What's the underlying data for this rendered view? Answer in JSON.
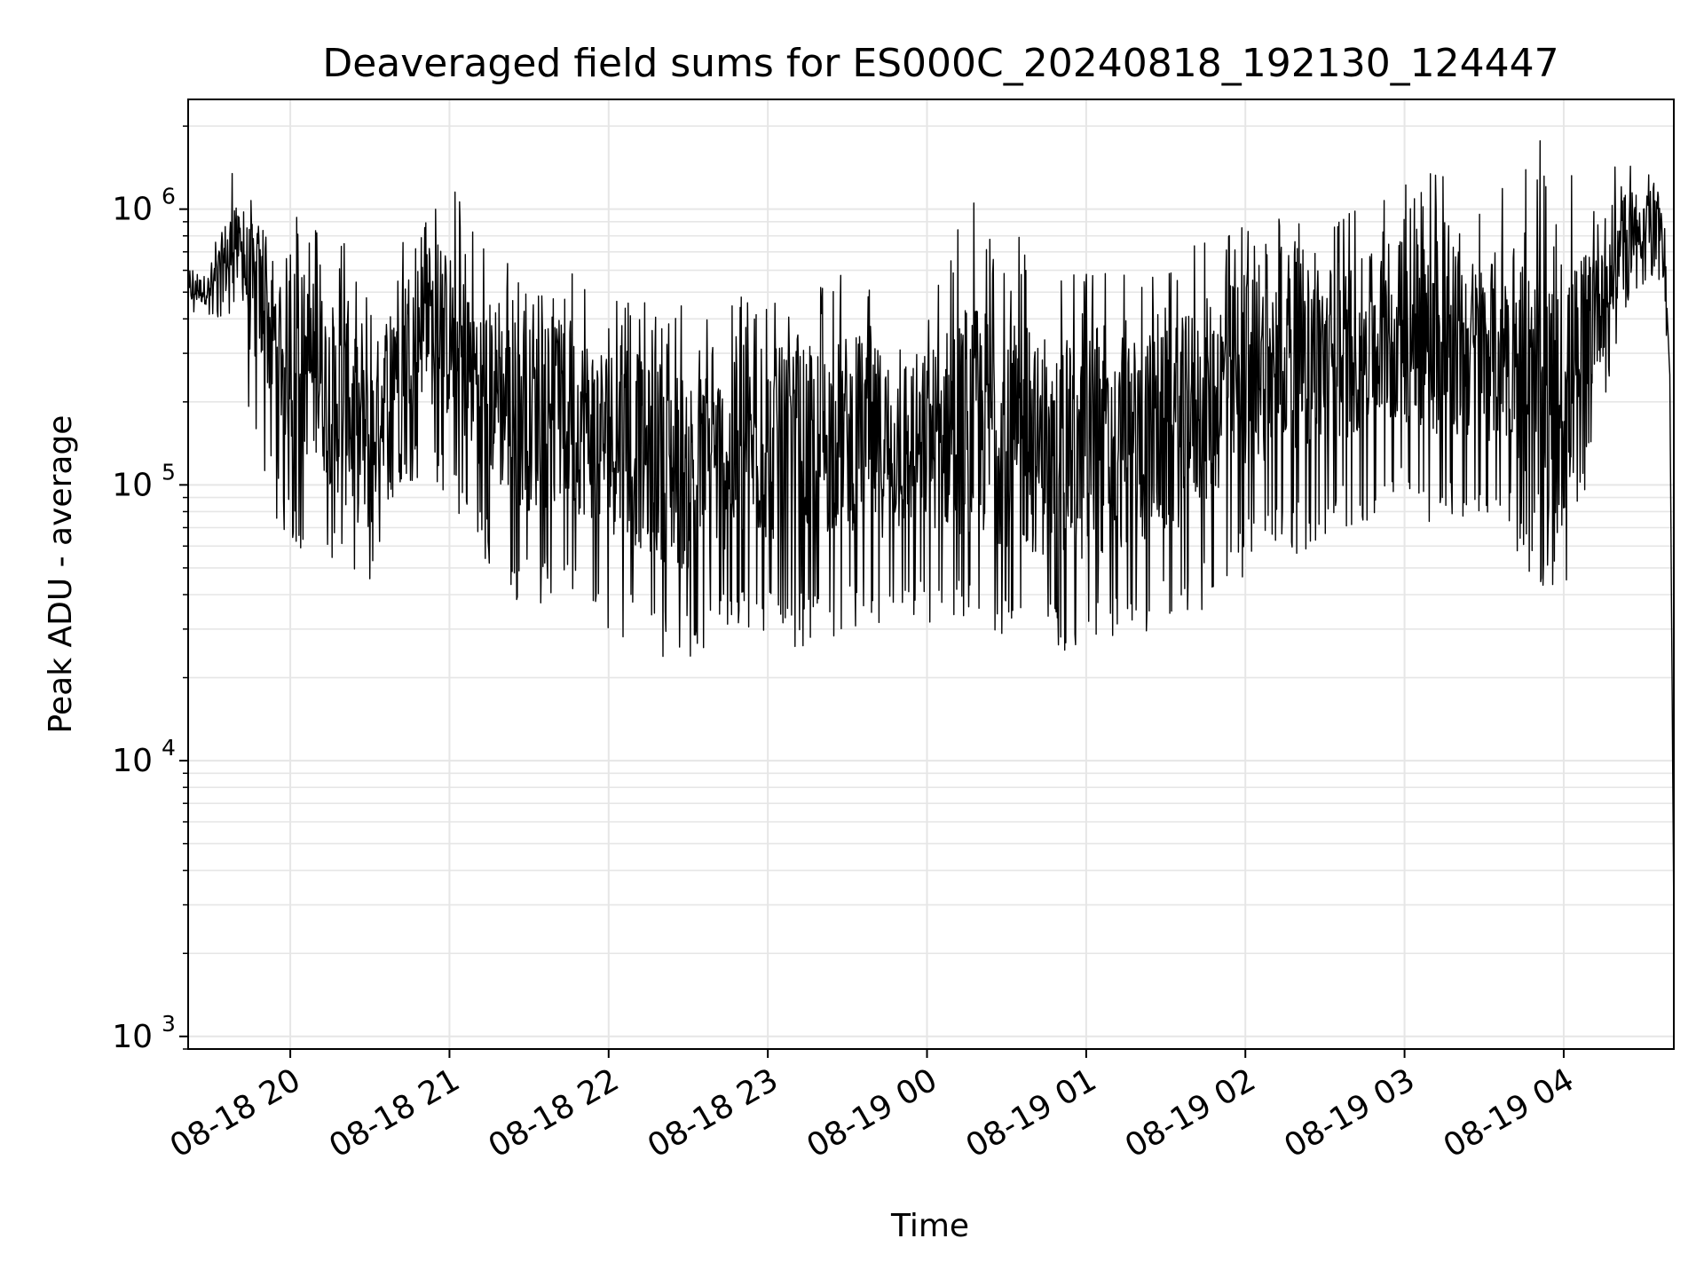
{
  "chart_data": {
    "type": "line",
    "title": "Deaveraged field sums for ES000C_20240818_192130_124447",
    "xlabel": "Time",
    "ylabel": "Peak ADU - average",
    "x_range": [
      "2024-08-18 19:21:30",
      "2024-08-19 04:41:30"
    ],
    "y_scale": "log",
    "ylim": [
      900,
      2500000
    ],
    "grid": true,
    "line_color": "#000000",
    "grid_color": "#e6e6e6",
    "xticks": [
      {
        "value": "2024-08-18 20:00",
        "label": "08-18 20"
      },
      {
        "value": "2024-08-18 21:00",
        "label": "08-18 21"
      },
      {
        "value": "2024-08-18 22:00",
        "label": "08-18 22"
      },
      {
        "value": "2024-08-18 23:00",
        "label": "08-18 23"
      },
      {
        "value": "2024-08-19 00:00",
        "label": "08-19 00"
      },
      {
        "value": "2024-08-19 01:00",
        "label": "08-19 01"
      },
      {
        "value": "2024-08-19 02:00",
        "label": "08-19 02"
      },
      {
        "value": "2024-08-19 03:00",
        "label": "08-19 03"
      },
      {
        "value": "2024-08-19 04:00",
        "label": "08-19 04"
      }
    ],
    "yticks": [
      {
        "value": 1000,
        "base": "10",
        "exp": "3"
      },
      {
        "value": 10000,
        "base": "10",
        "exp": "4"
      },
      {
        "value": 100000,
        "base": "10",
        "exp": "5"
      },
      {
        "value": 1000000,
        "base": "10",
        "exp": "6"
      }
    ],
    "series": [
      {
        "x": [
          "2024-08-18 19:21:30",
          "2024-08-18 19:30",
          "2024-08-18 19:37",
          "2024-08-18 19:40",
          "2024-08-18 19:45",
          "2024-08-18 19:50",
          "2024-08-18 19:55",
          "2024-08-18 20:00",
          "2024-08-18 20:10",
          "2024-08-18 20:20",
          "2024-08-18 20:30",
          "2024-08-18 20:35",
          "2024-08-18 20:40",
          "2024-08-18 20:50",
          "2024-08-18 21:00",
          "2024-08-18 21:10",
          "2024-08-18 21:20",
          "2024-08-18 21:30",
          "2024-08-18 21:45",
          "2024-08-18 22:00",
          "2024-08-18 22:15",
          "2024-08-18 22:30",
          "2024-08-18 22:45",
          "2024-08-18 23:00",
          "2024-08-18 23:15",
          "2024-08-18 23:30",
          "2024-08-18 23:45",
          "2024-08-19 00:00",
          "2024-08-19 00:15",
          "2024-08-19 00:30",
          "2024-08-19 00:45",
          "2024-08-19 01:00",
          "2024-08-19 01:15",
          "2024-08-19 01:30",
          "2024-08-19 01:45",
          "2024-08-19 02:00",
          "2024-08-19 02:15",
          "2024-08-19 02:30",
          "2024-08-19 02:45",
          "2024-08-19 03:00",
          "2024-08-19 03:15",
          "2024-08-19 03:30",
          "2024-08-19 03:40",
          "2024-08-19 03:50",
          "2024-08-19 04:00",
          "2024-08-19 04:10",
          "2024-08-19 04:20",
          "2024-08-19 04:25",
          "2024-08-19 04:30",
          "2024-08-19 04:35",
          "2024-08-19 04:38",
          "2024-08-19 04:40",
          "2024-08-19 04:41:30"
        ],
        "y_typical": [
          500000,
          520000,
          560000,
          900000,
          700000,
          600000,
          400000,
          350000,
          300000,
          160000,
          110000,
          200000,
          400000,
          450000,
          350000,
          300000,
          250000,
          220000,
          200000,
          180000,
          150000,
          120000,
          130000,
          160000,
          180000,
          190000,
          200000,
          190000,
          170000,
          150000,
          140000,
          120000,
          140000,
          160000,
          250000,
          350000,
          400000,
          380000,
          400000,
          420000,
          350000,
          300000,
          350000,
          140000,
          120000,
          400000,
          650000,
          800000,
          900000,
          1000000,
          700000,
          250000,
          2500
        ],
        "y_low": [
          420000,
          400000,
          400000,
          500000,
          140000,
          100000,
          70000,
          60000,
          55000,
          50000,
          40000,
          70000,
          90000,
          110000,
          90000,
          60000,
          40000,
          35000,
          40000,
          30000,
          25000,
          22000,
          30000,
          28000,
          25000,
          30000,
          25000,
          30000,
          30000,
          28000,
          25000,
          25000,
          28000,
          30000,
          35000,
          45000,
          55000,
          60000,
          70000,
          80000,
          70000,
          80000,
          65000,
          40000,
          40000,
          120000,
          300000,
          450000,
          500000,
          600000,
          400000,
          200000,
          2500
        ],
        "y_high": [
          600000,
          650000,
          1700000,
          1000000,
          1100000,
          1100000,
          1000000,
          1200000,
          900000,
          850000,
          600000,
          700000,
          800000,
          1000000,
          1300000,
          800000,
          700000,
          600000,
          650000,
          550000,
          450000,
          500000,
          500000,
          550000,
          500000,
          600000,
          450000,
          450000,
          1100000,
          900000,
          600000,
          600000,
          600000,
          700000,
          800000,
          900000,
          950000,
          1000000,
          1000000,
          1300000,
          1500000,
          1200000,
          1600000,
          1800000,
          1600000,
          1700000,
          1600000,
          1500000,
          1600000,
          1400000,
          1000000,
          300000,
          2500
        ]
      }
    ]
  }
}
